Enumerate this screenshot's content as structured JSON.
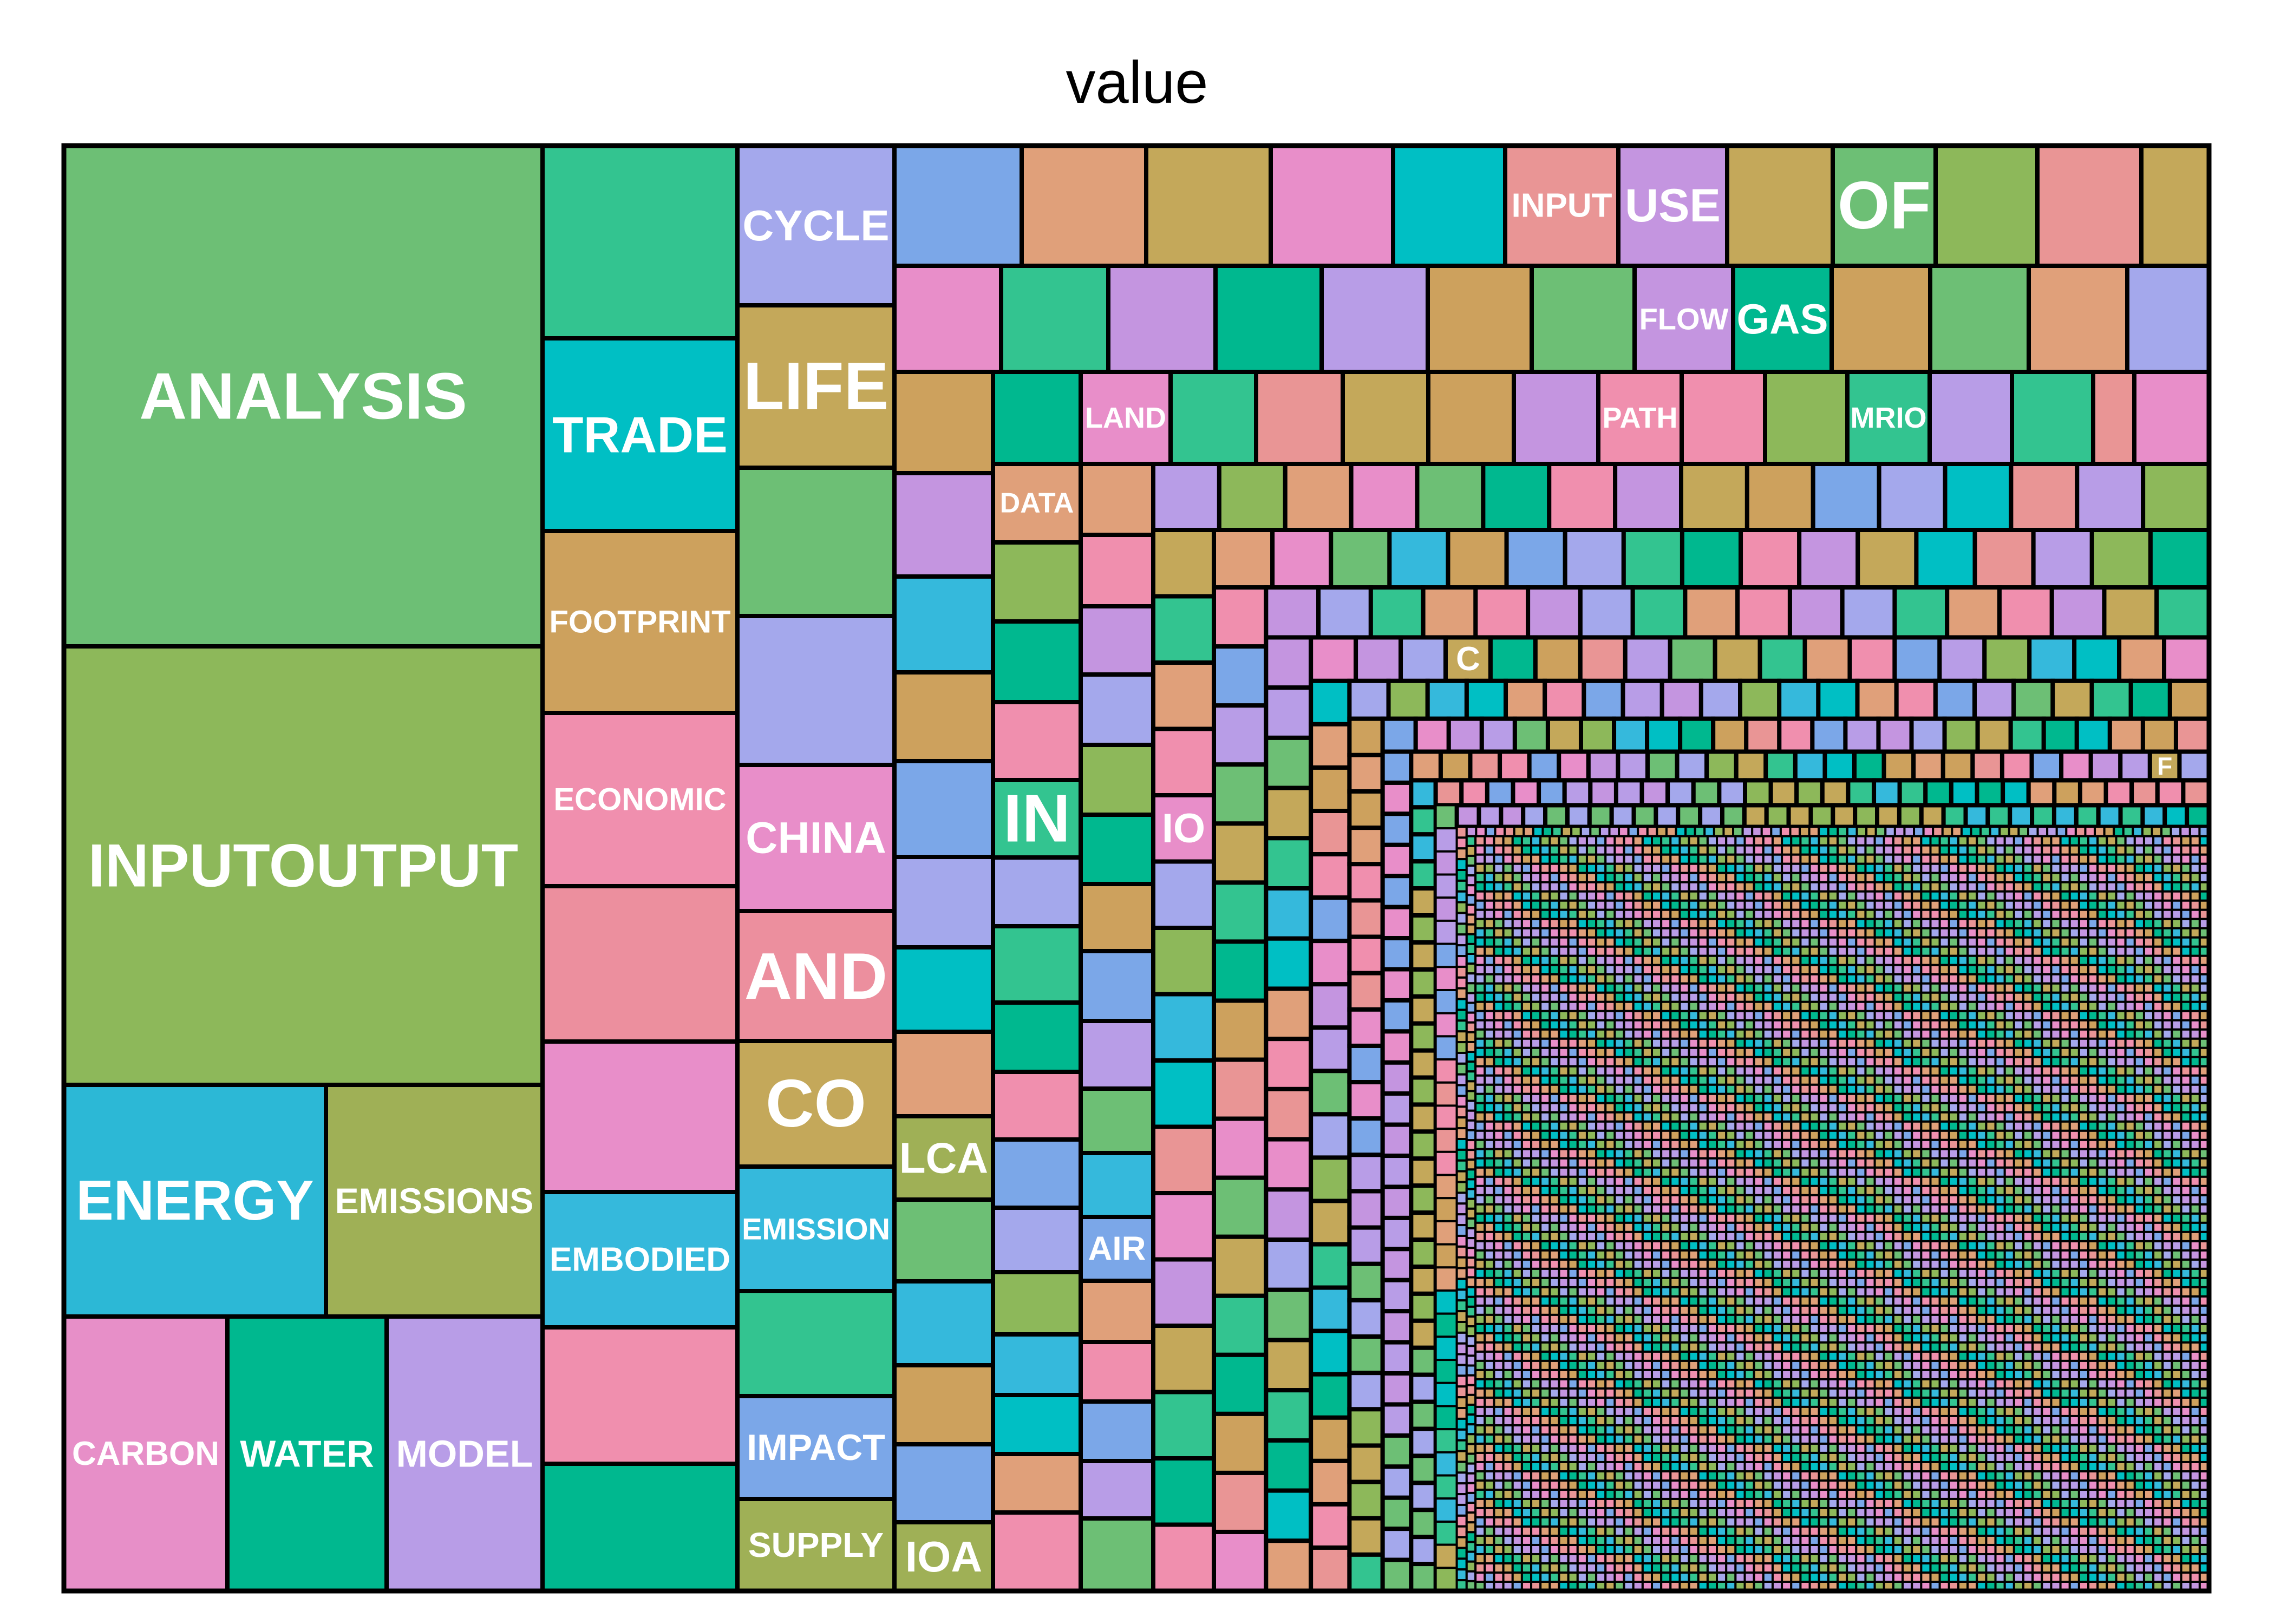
{
  "chart_data": {
    "type": "treemap",
    "title": "value",
    "note_values": "sizes are relative term-frequency estimates read from tile areas",
    "palette": [
      "#6dbf75",
      "#8db85a",
      "#33c490",
      "#00bfc4",
      "#cda15d",
      "#f08fae",
      "#e88ec9",
      "#b89de7",
      "#a4a8ec",
      "#c4a85a",
      "#35b9dc",
      "#00b88f",
      "#e0a07a",
      "#e99595",
      "#7ba7e8",
      "#c495e0"
    ],
    "labeled": [
      {
        "label": "ANALYSIS",
        "value": 100,
        "color": "#6dbf75"
      },
      {
        "label": "INPUTOUTPUT",
        "value": 89,
        "color": "#8db85a"
      },
      {
        "label": "ENERGY",
        "value": 27.5,
        "color": "#2cb8d6"
      },
      {
        "label": "EMISSIONS",
        "value": 25.5,
        "color": "#9fb056"
      },
      {
        "label": "CARBON",
        "value": 20.5,
        "color": "#e78fc8"
      },
      {
        "label": "WATER",
        "value": 19,
        "color": "#00b88f"
      },
      {
        "label": "MODEL",
        "value": 18.5,
        "color": "#b89de7"
      },
      {
        "label": "TRADE",
        "value": 22.5,
        "color": "#00bfc4"
      },
      {
        "label": "FOOTPRINT",
        "value": 21.5,
        "color": "#cda15d"
      },
      {
        "label": "ECONOMIC",
        "value": 19.5,
        "color": "#f08fae"
      },
      {
        "label": "EMBODIED",
        "value": 15.5,
        "color": "#35b9dc"
      },
      {
        "label": "CYCLE",
        "value": 11.3,
        "color": "#a4a8ec"
      },
      {
        "label": "LIFE",
        "value": 11.3,
        "color": "#c4a85a"
      },
      {
        "label": "CHINA",
        "value": 10.3,
        "color": "#e88ec9"
      },
      {
        "label": "AND",
        "value": 9.3,
        "color": "#ec8f9e"
      },
      {
        "label": "CO",
        "value": 9.1,
        "color": "#c4a85a"
      },
      {
        "label": "EMISSION",
        "value": 8.7,
        "color": "#35b9dc"
      },
      {
        "label": "IMPACT",
        "value": 7.3,
        "color": "#7ba7e8"
      },
      {
        "label": "SUPPLY",
        "value": 7.1,
        "color": "#9fb056"
      },
      {
        "label": "LCA",
        "value": 3.6,
        "color": "#9fb056"
      },
      {
        "label": "IOA",
        "value": 3.6,
        "color": "#9fb056"
      },
      {
        "label": "IN",
        "value": 3.7,
        "color": "#33c490"
      },
      {
        "label": "IO",
        "value": 2.2,
        "color": "#e88ec9"
      },
      {
        "label": "AIR",
        "value": 2.4,
        "color": "#7ba7e8"
      },
      {
        "label": "DATA",
        "value": 2.9,
        "color": "#e0a07a"
      },
      {
        "label": "INPUT",
        "value": 4.4,
        "color": "#e99595"
      },
      {
        "label": "USE",
        "value": 4.4,
        "color": "#c495e0"
      },
      {
        "label": "OF",
        "value": 4.4,
        "color": "#6dbf75"
      },
      {
        "label": "FLOW",
        "value": 3.8,
        "color": "#c495e0"
      },
      {
        "label": "GAS",
        "value": 3.8,
        "color": "#00b88f"
      },
      {
        "label": "LAND",
        "value": 2.8,
        "color": "#e88ec9"
      },
      {
        "label": "PATH",
        "value": 2.8,
        "color": "#f08fae"
      },
      {
        "label": "MRIO",
        "value": 2.8,
        "color": "#33c490"
      },
      {
        "label": "C",
        "value": 0.6,
        "color": "#c4a85a"
      },
      {
        "label": "F",
        "value": 0.35,
        "color": "#c4a85a"
      }
    ]
  }
}
